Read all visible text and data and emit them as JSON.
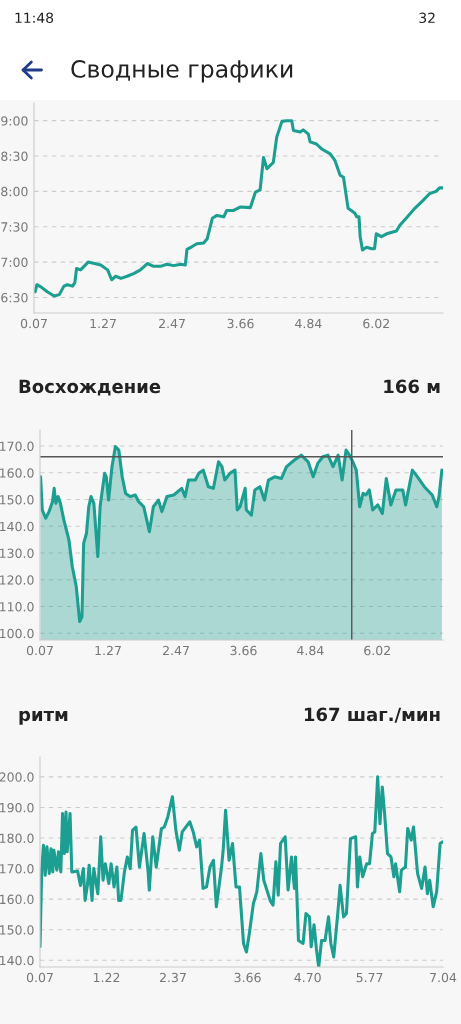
{
  "chart_data": [
    {
      "type": "line",
      "title": "Сводные графики",
      "annotations": [
        "11:48",
        "32"
      ],
      "grid": "y",
      "xlim": [
        0.07,
        7.18
      ],
      "ylim": [
        6.28,
        9.25
      ],
      "xticks": [
        0.07,
        1.27,
        2.47,
        3.66,
        4.84,
        6.02
      ],
      "yticks": [
        {
          "value": 6.5,
          "label": "6:30"
        },
        {
          "value": 7,
          "label": "7:00"
        },
        {
          "value": 7.5,
          "label": "7:30"
        },
        {
          "value": 8,
          "label": "8:00"
        },
        {
          "value": 8.5,
          "label": "8:30"
        },
        {
          "value": 9,
          "label": "9:00"
        }
      ],
      "series": [
        {
          "color": "#1c9e90",
          "x": [
            0.09,
            0.12,
            0.19,
            0.3,
            0.42,
            0.51,
            0.59,
            0.65,
            0.74,
            0.78,
            0.81,
            0.88,
            0.94,
            1.01,
            1.12,
            1.23,
            1.35,
            1.42,
            1.49,
            1.58,
            1.69,
            1.81,
            1.92,
            2.04,
            2.15,
            2.27,
            2.38,
            2.5,
            2.62,
            2.7,
            2.73,
            2.82,
            2.9,
            3.02,
            3.08,
            3.17,
            3.25,
            3.37,
            3.42,
            3.54,
            3.66,
            3.83,
            3.92,
            4.0,
            4.06,
            4.12,
            4.23,
            4.29,
            4.38,
            4.46,
            4.55,
            4.58,
            4.7,
            4.75,
            4.84,
            4.87,
            4.98,
            5.07,
            5.22,
            5.3,
            5.39,
            5.45,
            5.53,
            5.65,
            5.68,
            5.72,
            5.74,
            5.78,
            5.85,
            5.94,
            5.99,
            6.02,
            6.11,
            6.2,
            6.37,
            6.43,
            6.54,
            6.69,
            6.83,
            6.95,
            7.06,
            7.12,
            7.18
          ],
          "values": [
            6.58,
            6.68,
            6.65,
            6.58,
            6.52,
            6.54,
            6.66,
            6.68,
            6.66,
            6.71,
            6.91,
            6.89,
            6.94,
            7.0,
            6.98,
            6.96,
            6.89,
            6.75,
            6.8,
            6.77,
            6.8,
            6.84,
            6.89,
            6.98,
            6.94,
            6.94,
            6.97,
            6.95,
            6.97,
            6.96,
            7.18,
            7.22,
            7.26,
            7.27,
            7.33,
            7.62,
            7.66,
            7.64,
            7.73,
            7.73,
            7.78,
            7.77,
            7.99,
            8.02,
            8.48,
            8.32,
            8.41,
            8.77,
            8.99,
            9.0,
            9.0,
            8.86,
            8.84,
            8.87,
            8.81,
            8.7,
            8.67,
            8.6,
            8.53,
            8.44,
            8.23,
            8.2,
            7.76,
            7.69,
            7.64,
            7.64,
            7.36,
            7.17,
            7.21,
            7.19,
            7.19,
            7.4,
            7.36,
            7.4,
            7.44,
            7.52,
            7.62,
            7.76,
            7.87,
            7.97,
            8.0,
            8.05,
            8.05
          ]
        }
      ]
    },
    {
      "type": "area",
      "title": "Восхождение",
      "annotations": [
        "166 м"
      ],
      "grid": "y",
      "xlim": [
        0.07,
        7.18
      ],
      "ylim": [
        97.5,
        176
      ],
      "xticks": [
        0.07,
        1.27,
        2.47,
        3.66,
        4.84,
        6.02
      ],
      "yticks": [
        {
          "value": 100,
          "label": "100.0"
        },
        {
          "value": 110,
          "label": "110.0"
        },
        {
          "value": 120,
          "label": "120.0"
        },
        {
          "value": 130,
          "label": "130.0"
        },
        {
          "value": 140,
          "label": "140.0"
        },
        {
          "value": 150,
          "label": "150.0"
        },
        {
          "value": 160,
          "label": "160.0"
        },
        {
          "value": 170,
          "label": "170.0"
        }
      ],
      "ref_lines": [
        {
          "axis": "y",
          "value": 166,
          "color": "#555555"
        },
        {
          "axis": "x",
          "value": 5.57,
          "color": "#555555"
        }
      ],
      "series": [
        {
          "color": "#1c9e90",
          "x": [
            0.08,
            0.11,
            0.17,
            0.23,
            0.29,
            0.32,
            0.35,
            0.39,
            0.43,
            0.49,
            0.58,
            0.64,
            0.71,
            0.77,
            0.81,
            0.84,
            0.89,
            0.93,
            0.97,
            1.02,
            1.09,
            1.13,
            1.21,
            1.24,
            1.28,
            1.34,
            1.4,
            1.46,
            1.52,
            1.58,
            1.66,
            1.75,
            1.81,
            1.9,
            2.0,
            2.07,
            2.16,
            2.22,
            2.31,
            2.43,
            2.57,
            2.63,
            2.69,
            2.81,
            2.87,
            2.95,
            3.04,
            3.13,
            3.22,
            3.28,
            3.33,
            3.42,
            3.51,
            3.55,
            3.6,
            3.69,
            3.71,
            3.8,
            3.86,
            3.95,
            4.03,
            4.1,
            4.21,
            4.33,
            4.42,
            4.56,
            4.68,
            4.8,
            4.89,
            4.97,
            5.06,
            5.15,
            5.24,
            5.33,
            5.4,
            5.47,
            5.53,
            5.59,
            5.65,
            5.71,
            5.77,
            5.82,
            5.88,
            5.94,
            6.03,
            6.11,
            6.18,
            6.26,
            6.35,
            6.47,
            6.52,
            6.64,
            6.73,
            6.85,
            6.99,
            7.07,
            7.11,
            7.16
          ],
          "values": [
            158.5,
            146.1,
            143.0,
            145.5,
            149.2,
            154.2,
            148.6,
            151.1,
            148.6,
            142.4,
            134.9,
            124.9,
            117.4,
            104.4,
            106.2,
            133.6,
            137.4,
            147.3,
            151.1,
            148.6,
            128.7,
            147.3,
            159.8,
            158.5,
            149.8,
            162.3,
            169.8,
            168.5,
            158.5,
            152.3,
            151.1,
            151.7,
            149.2,
            147.3,
            138.0,
            147.3,
            149.8,
            145.5,
            151.1,
            151.7,
            154.2,
            151.1,
            157.3,
            157.3,
            159.8,
            161.0,
            154.8,
            154.2,
            164.1,
            162.3,
            157.3,
            159.8,
            161.0,
            146.1,
            147.3,
            154.2,
            146.1,
            144.2,
            153.6,
            154.8,
            149.8,
            157.3,
            158.5,
            157.9,
            162.3,
            164.8,
            166.6,
            164.1,
            158.5,
            163.5,
            166.0,
            166.6,
            162.3,
            166.6,
            157.3,
            168.5,
            166.6,
            164.1,
            161.0,
            147.3,
            152.3,
            151.7,
            153.6,
            146.1,
            148.0,
            144.8,
            157.9,
            148.0,
            153.6,
            153.6,
            148.0,
            161.0,
            158.5,
            154.8,
            151.7,
            147.3,
            151.1,
            161.0
          ]
        }
      ]
    },
    {
      "type": "line",
      "title": "ритм",
      "annotations": [
        "167 шаг./мин"
      ],
      "grid": "y",
      "xlim": [
        0.07,
        7.04
      ],
      "ylim": [
        137.8,
        206.5
      ],
      "xticks": [
        0.07,
        1.22,
        2.37,
        3.66,
        {
          "value": 4.7,
          "label": "4.70"
        },
        5.77,
        7.04
      ],
      "yticks": [
        {
          "value": 140,
          "label": "140.0"
        },
        {
          "value": 150,
          "label": "150.0"
        },
        {
          "value": 160,
          "label": "160.0"
        },
        {
          "value": 170,
          "label": "170.0"
        },
        {
          "value": 180,
          "label": "180.0"
        },
        {
          "value": 190,
          "label": "190.0"
        },
        {
          "value": 200,
          "label": "200.0"
        }
      ],
      "series": [
        {
          "color": "#1c9e90",
          "x": [
            0.07,
            0.1,
            0.13,
            0.16,
            0.19,
            0.23,
            0.26,
            0.29,
            0.31,
            0.36,
            0.39,
            0.43,
            0.46,
            0.49,
            0.52,
            0.54,
            0.59,
            0.62,
            0.72,
            0.77,
            0.82,
            0.85,
            0.89,
            0.92,
            0.97,
            1.0,
            1.07,
            1.12,
            1.16,
            1.2,
            1.26,
            1.3,
            1.35,
            1.4,
            1.43,
            1.47,
            1.53,
            1.58,
            1.63,
            1.67,
            1.73,
            1.79,
            1.87,
            1.94,
            1.96,
            2.02,
            2.08,
            2.17,
            2.22,
            2.28,
            2.36,
            2.42,
            2.48,
            2.53,
            2.66,
            2.72,
            2.78,
            2.83,
            2.89,
            2.95,
            3.01,
            3.07,
            3.12,
            3.21,
            3.24,
            3.28,
            3.34,
            3.4,
            3.46,
            3.52,
            3.59,
            3.64,
            3.69,
            3.76,
            3.82,
            3.89,
            3.94,
            4.05,
            4.1,
            4.15,
            4.19,
            4.23,
            4.31,
            4.36,
            4.42,
            4.47,
            4.49,
            4.54,
            4.62,
            4.67,
            4.73,
            4.76,
            4.81,
            4.85,
            4.89,
            4.94,
            5.0,
            5.06,
            5.1,
            5.15,
            5.22,
            5.26,
            5.32,
            5.37,
            5.44,
            5.53,
            5.56,
            5.6,
            5.65,
            5.72,
            5.77,
            5.82,
            5.86,
            5.91,
            5.95,
            5.99,
            6.03,
            6.08,
            6.14,
            6.19,
            6.22,
            6.29,
            6.32,
            6.39,
            6.43,
            6.49,
            6.53,
            6.6,
            6.67,
            6.73,
            6.77,
            6.81,
            6.87,
            6.93,
            6.99,
            7.03
          ],
          "values": [
            144.4,
            169.5,
            177.6,
            167.8,
            177.1,
            168.4,
            176.5,
            168.9,
            176.0,
            169.5,
            175.5,
            168.9,
            188.0,
            174.9,
            188.5,
            175.5,
            188.0,
            168.9,
            169.2,
            164.5,
            170.0,
            159.6,
            164.5,
            171.1,
            159.6,
            170.0,
            161.8,
            180.4,
            166.2,
            171.6,
            165.1,
            171.6,
            164.0,
            170.5,
            159.6,
            159.6,
            168.9,
            173.8,
            170.0,
            182.5,
            183.6,
            170.5,
            181.5,
            168.9,
            162.9,
            180.4,
            170.5,
            183.1,
            183.6,
            186.9,
            193.5,
            182.5,
            176.0,
            182.0,
            185.3,
            182.0,
            177.1,
            179.3,
            163.5,
            164.0,
            170.5,
            172.7,
            157.5,
            170.5,
            176.5,
            189.1,
            172.7,
            178.2,
            164.0,
            164.0,
            145.5,
            142.7,
            148.7,
            158.5,
            162.4,
            174.9,
            166.2,
            159.6,
            158.0,
            172.2,
            161.3,
            178.2,
            180.4,
            163.0,
            173.8,
            163.5,
            173.8,
            146.5,
            145.5,
            155.3,
            154.2,
            144.4,
            151.6,
            143.8,
            137.8,
            146.5,
            146.5,
            154.2,
            145.5,
            141.1,
            155.3,
            164.5,
            154.2,
            155.3,
            179.8,
            180.4,
            164.0,
            173.8,
            167.3,
            171.6,
            171.6,
            181.5,
            182.0,
            200.0,
            184.7,
            196.7,
            188.0,
            174.9,
            173.8,
            167.3,
            171.6,
            162.4,
            169.5,
            170.5,
            183.1,
            179.3,
            183.6,
            168.4,
            163.5,
            170.5,
            161.8,
            166.2,
            157.5,
            162.4,
            178.2,
            178.7
          ]
        }
      ]
    }
  ]
}
